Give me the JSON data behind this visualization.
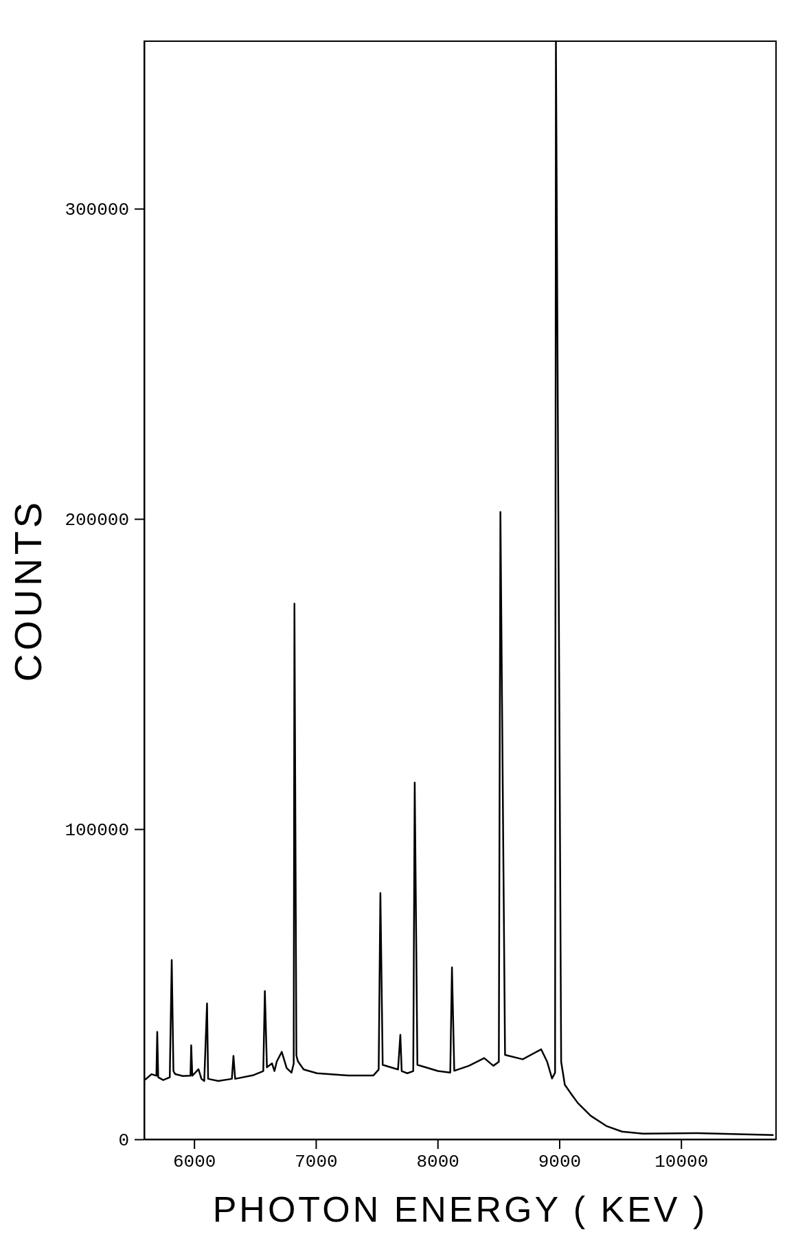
{
  "chart_data": {
    "type": "line",
    "xlabel": "PHOTON ENERGY ( KEV )",
    "ylabel": "COUNTS",
    "xlim": [
      5590,
      10780
    ],
    "ylim": [
      0,
      354000
    ],
    "xticks": [
      6000,
      7000,
      8000,
      9000,
      10000
    ],
    "yticks": [
      0,
      100000,
      200000,
      300000
    ],
    "grid": false,
    "series": [
      {
        "color": "#000000",
        "x": [
          5600,
          5650,
          5690,
          5697,
          5705,
          5746,
          5800,
          5816,
          5830,
          5845,
          5907,
          5970,
          5976,
          5985,
          6036,
          6060,
          6083,
          6106,
          6115,
          6198,
          6310,
          6323,
          6337,
          6488,
          6568,
          6581,
          6598,
          6640,
          6660,
          6679,
          6720,
          6760,
          6800,
          6818,
          6824,
          6840,
          6853,
          6900,
          7010,
          7265,
          7473,
          7516,
          7530,
          7549,
          7675,
          7694,
          7705,
          7751,
          7800,
          7812,
          7834,
          8004,
          8104,
          8118,
          8137,
          8257,
          8383,
          8458,
          8503,
          8516,
          8554,
          8699,
          8851,
          8900,
          8940,
          8965,
          8972,
          9015,
          9045,
          9100,
          9152,
          9257,
          9386,
          9515,
          9687,
          10113,
          10754
        ],
        "values": [
          19300,
          21000,
          20500,
          34600,
          20000,
          19100,
          20000,
          57800,
          22000,
          21000,
          20400,
          20500,
          30300,
          20500,
          22600,
          19500,
          18800,
          43800,
          19500,
          18800,
          19500,
          26900,
          19500,
          20700,
          22000,
          47800,
          23200,
          24500,
          22000,
          25100,
          28200,
          23000,
          21500,
          24400,
          172700,
          27000,
          25100,
          22500,
          21300,
          20600,
          20600,
          22500,
          79400,
          24000,
          22500,
          33700,
          22000,
          21300,
          22000,
          115000,
          24000,
          22000,
          21500,
          55400,
          22100,
          23700,
          26200,
          23700,
          25000,
          202200,
          27200,
          25800,
          29000,
          25000,
          19600,
          21500,
          354000,
          25000,
          17600,
          14500,
          11700,
          7600,
          4300,
          2500,
          1800,
          2000,
          1400
        ]
      }
    ]
  }
}
